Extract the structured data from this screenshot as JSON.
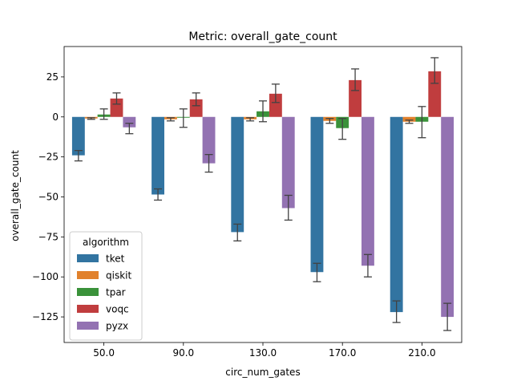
{
  "chart_data": {
    "type": "bar",
    "title": "Metric: overall_gate_count",
    "xlabel": "circ_num_gates",
    "ylabel": "overall_gate_count",
    "categories": [
      "50.0",
      "90.0",
      "130.0",
      "170.0",
      "210.0"
    ],
    "ylim": [
      -141,
      44
    ],
    "yticks": [
      25,
      0,
      -25,
      -50,
      -75,
      -100,
      -125
    ],
    "ytick_labels": [
      "25",
      "0",
      "−25",
      "−50",
      "−75",
      "−100",
      "−125"
    ],
    "grid": false,
    "legend": {
      "title": "algorithm",
      "placement": "lower-left"
    },
    "series": [
      {
        "name": "tket",
        "color": "#3274a1",
        "values": [
          -24,
          -48.5,
          -72,
          -97,
          -122
        ],
        "err_low": [
          -27.5,
          -52,
          -77.5,
          -103,
          -128.5
        ],
        "err_high": [
          -21,
          -45,
          -67,
          -91.5,
          -115
        ]
      },
      {
        "name": "qiskit",
        "color": "#e1812c",
        "values": [
          -1,
          -1.5,
          -1.5,
          -2.5,
          -3
        ],
        "err_low": [
          -1.5,
          -2.5,
          -2.5,
          -4,
          -4
        ],
        "err_high": [
          -0.5,
          -0.5,
          -0.5,
          -1,
          -2
        ]
      },
      {
        "name": "tpar",
        "color": "#3a923a",
        "values": [
          1.5,
          -0.5,
          3.5,
          -7,
          -3
        ],
        "err_low": [
          -1.5,
          -6.5,
          -3,
          -14,
          -13
        ],
        "err_high": [
          5,
          5,
          10,
          -1,
          6.5
        ]
      },
      {
        "name": "voqc",
        "color": "#c03d3e",
        "values": [
          11.5,
          11,
          14.5,
          23,
          28.5
        ],
        "err_low": [
          8,
          7,
          9,
          16.5,
          21
        ],
        "err_high": [
          15,
          15,
          20.5,
          30,
          37
        ]
      },
      {
        "name": "pyzx",
        "color": "#9372b2",
        "values": [
          -6.5,
          -29,
          -57,
          -93,
          -125
        ],
        "err_low": [
          -10.5,
          -34.5,
          -64.5,
          -100,
          -133.5
        ],
        "err_high": [
          -4,
          -23.5,
          -49,
          -86,
          -116.5
        ]
      }
    ]
  }
}
